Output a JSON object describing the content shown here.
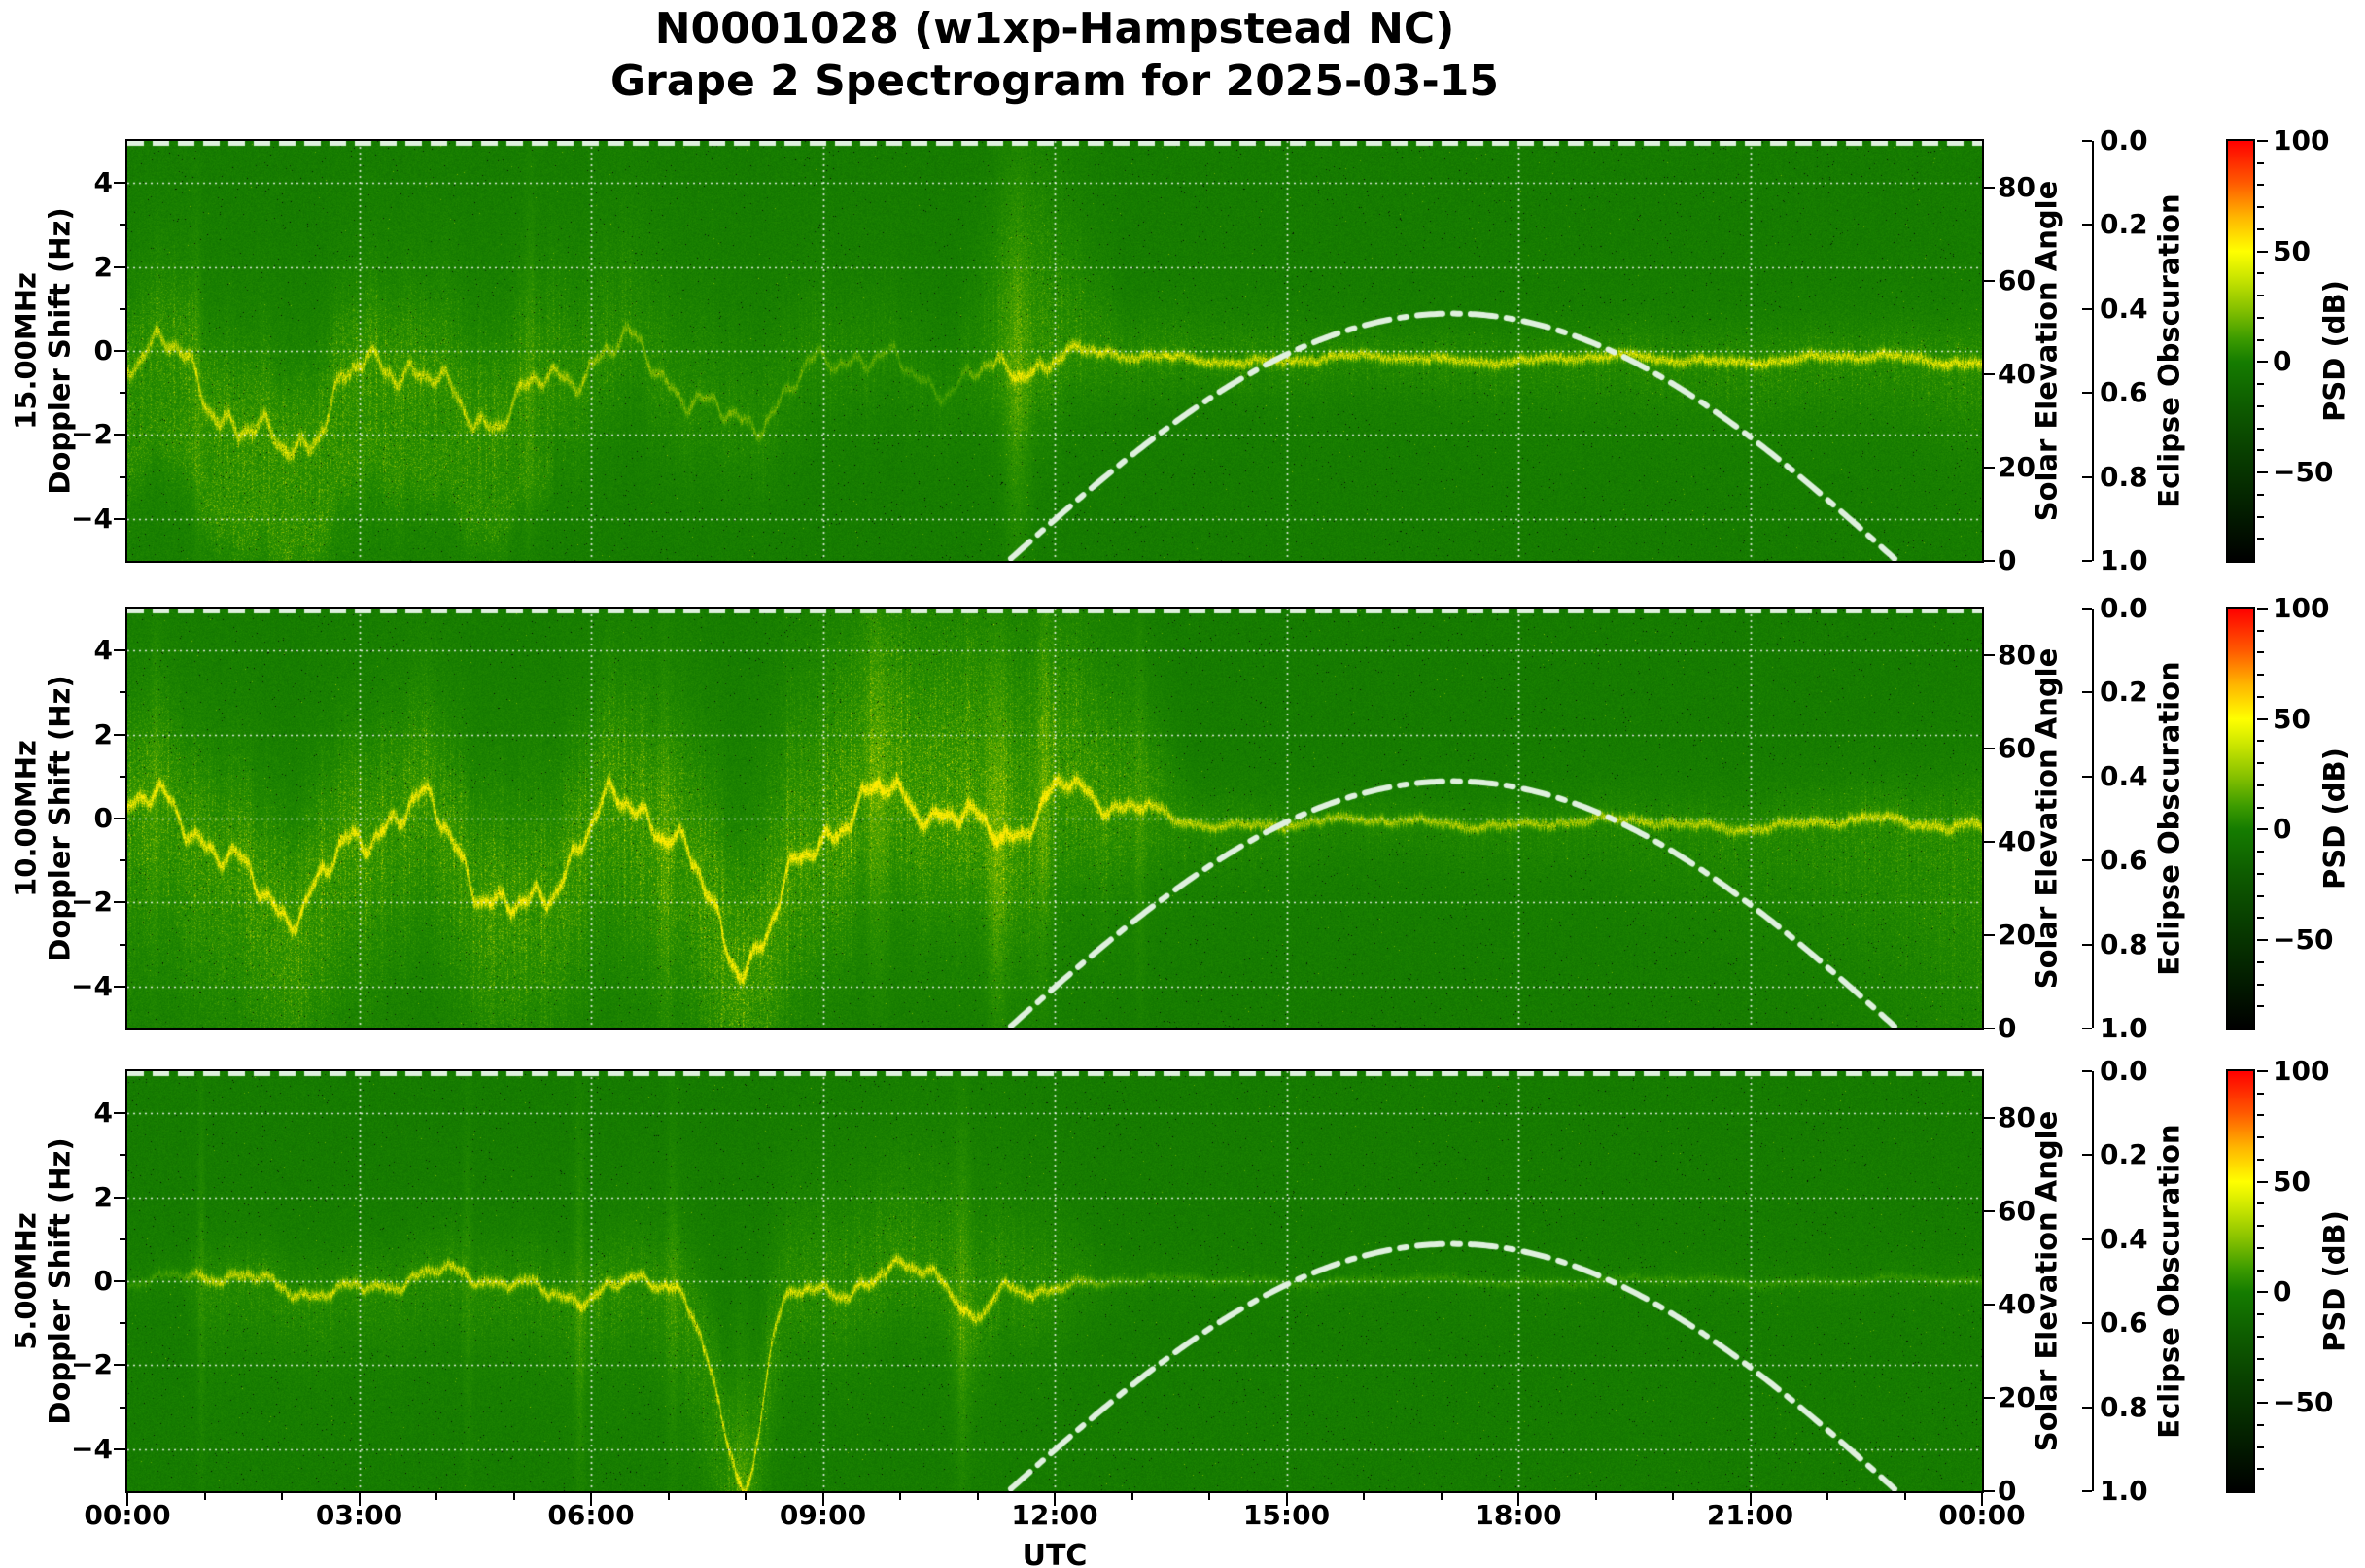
{
  "chart_data": {
    "type": "heatmap",
    "subtype": "spectrogram-multipanel",
    "title_line1": "N0001028 (w1xp-Hampstead NC)",
    "title_line2": "Grape 2 Spectrogram for 2025-03-15",
    "station": "N0001028",
    "callsign": "w1xp",
    "location": "Hampstead NC",
    "date": "2025-03-15",
    "x_axis": {
      "label": "UTC",
      "range_hours": [
        0,
        24
      ],
      "tick_hours": [
        0,
        3,
        6,
        9,
        12,
        15,
        18,
        21,
        24
      ],
      "tick_labels": [
        "00:00",
        "03:00",
        "06:00",
        "09:00",
        "12:00",
        "15:00",
        "18:00",
        "21:00",
        "00:00"
      ],
      "minor_tick_every_hours": 1
    },
    "doppler_axis": {
      "label": "Doppler Shift (Hz)",
      "range": [
        -5,
        5
      ],
      "tick_values": [
        4,
        2,
        0,
        -2,
        -4
      ],
      "tick_labels": [
        "4",
        "2",
        "0",
        "−2",
        "−4"
      ],
      "minor_tick_values": [
        3,
        1,
        -1,
        -3
      ]
    },
    "solar_axis": {
      "label": "Solar Elevation Angle",
      "range": [
        0,
        90
      ],
      "tick_values": [
        80,
        60,
        40,
        20,
        0
      ],
      "tick_labels": [
        "80",
        "60",
        "40",
        "20",
        "0"
      ]
    },
    "eclipse_axis": {
      "label": "Eclipse Obscuration",
      "top_value": 0.0,
      "bottom_value": 1.0,
      "tick_values": [
        0.0,
        0.2,
        0.4,
        0.6,
        0.8,
        1.0
      ],
      "tick_labels": [
        "0.0",
        "0.2",
        "0.4",
        "0.6",
        "0.8",
        "1.0"
      ]
    },
    "colorbar": {
      "label": "PSD (dB)",
      "top_value": 100,
      "bottom_value": -90,
      "tick_values": [
        100,
        50,
        0,
        -50
      ],
      "tick_labels": [
        "100",
        "50",
        "0",
        "−50"
      ],
      "minor_tick_step": 10,
      "gradient_stops": [
        [
          0.0,
          "#ff0000"
        ],
        [
          0.1,
          "#ff5a00"
        ],
        [
          0.18,
          "#ffb400"
        ],
        [
          0.263,
          "#ffff00"
        ],
        [
          0.32,
          "#cfe800"
        ],
        [
          0.4,
          "#86c100"
        ],
        [
          0.47,
          "#3d9c00"
        ],
        [
          0.526,
          "#157c00"
        ],
        [
          0.63,
          "#0e5c00"
        ],
        [
          0.75,
          "#083d00"
        ],
        [
          0.88,
          "#031e00"
        ],
        [
          1.0,
          "#000000"
        ]
      ]
    },
    "overlays": {
      "solar_elevation_curve": {
        "style": "dash-dot",
        "color": "#dff0de",
        "noon_utc": 17.15,
        "max_elevation_deg": 53,
        "sunrise_utc": 11.4,
        "sunset_utc": 22.9,
        "cos_offset": -3.7,
        "cos_amplitude": 56.7
      },
      "eclipse_obscuration_trace": {
        "style": "dashed",
        "color": "#dff0de",
        "constant_value": 0.0
      }
    },
    "colormap_dB_to_rgb": [
      [
        -90,
        0,
        0,
        0
      ],
      [
        -60,
        3,
        30,
        0
      ],
      [
        -30,
        9,
        64,
        0
      ],
      [
        -10,
        16,
        100,
        0
      ],
      [
        0,
        21,
        124,
        0
      ],
      [
        10,
        40,
        142,
        0
      ],
      [
        20,
        80,
        163,
        0
      ],
      [
        30,
        130,
        185,
        0
      ],
      [
        40,
        180,
        205,
        0
      ],
      [
        48,
        222,
        228,
        0
      ],
      [
        55,
        255,
        246,
        0
      ],
      [
        70,
        255,
        180,
        0
      ],
      [
        85,
        255,
        90,
        0
      ],
      [
        100,
        255,
        0,
        0
      ]
    ],
    "panels": [
      {
        "frequency_label": "15.00MHz",
        "frequency_mhz": 15.0,
        "description": "Diffuse wandering Doppler trace near -0.5 Hz from 00:00-12:30 UTC, burst to +3 Hz near 11:30, then tight bright carrier line just below 0 Hz from ~12:30 to 24:00",
        "render_model": {
          "seed": 101,
          "keys": [
            [
              0.0,
              22,
              1.1,
              1.7,
              1.0,
              34,
              -0.35
            ],
            [
              1.5,
              26,
              1.3,
              2.1,
              1.2,
              38,
              -0.35
            ],
            [
              3.0,
              25,
              1.2,
              2.2,
              1.1,
              36,
              -0.35
            ],
            [
              5.0,
              22,
              1.5,
              1.6,
              1.0,
              34,
              -0.35
            ],
            [
              6.5,
              15,
              1.6,
              1.2,
              1.0,
              26,
              -0.3
            ],
            [
              8.0,
              13,
              1.4,
              1.0,
              0.9,
              22,
              -0.3
            ],
            [
              9.5,
              11,
              1.1,
              0.9,
              0.9,
              18,
              -0.25
            ],
            [
              10.7,
              8,
              0.9,
              0.8,
              0.8,
              14,
              -0.2
            ],
            [
              11.3,
              18,
              2.2,
              0.9,
              0.8,
              34,
              -0.1
            ],
            [
              11.8,
              24,
              2.7,
              0.9,
              0.7,
              40,
              0.0
            ],
            [
              12.3,
              19,
              1.6,
              0.8,
              0.4,
              42,
              -0.15
            ],
            [
              12.9,
              15,
              0.6,
              0.7,
              0.18,
              42,
              -0.2
            ],
            [
              14.0,
              15,
              0.7,
              0.5,
              0.15,
              42,
              -0.2
            ],
            [
              16.0,
              13,
              0.45,
              0.6,
              0.12,
              42,
              -0.2
            ],
            [
              18.0,
              14,
              0.45,
              0.7,
              0.12,
              44,
              -0.2
            ],
            [
              20.0,
              15,
              0.5,
              0.8,
              0.13,
              44,
              -0.2
            ],
            [
              22.5,
              16,
              0.5,
              0.9,
              0.15,
              44,
              -0.2
            ],
            [
              24.0,
              19,
              0.6,
              1.1,
              0.2,
              44,
              -0.2
            ]
          ],
          "dips": [
            {
              "t": 1.9,
              "w": 0.8,
              "d": -1.3
            },
            {
              "t": 4.3,
              "w": 0.5,
              "d": -1.0
            },
            {
              "t": 7.6,
              "w": 0.6,
              "d": -1.1
            },
            {
              "t": 10.2,
              "w": 0.4,
              "d": -0.8
            }
          ],
          "streaks": [
            {
              "t": 11.5,
              "w": 0.12,
              "a": 14
            },
            {
              "t": 5.2,
              "w": 0.05,
              "a": 8
            },
            {
              "t": 0.9,
              "w": 0.04,
              "a": 7
            }
          ],
          "subband": {
            "off": -2.3,
            "amp": 9,
            "sigma": 0.5,
            "t0": 0,
            "t1": 5.5
          }
        }
      },
      {
        "frequency_label": "10.00MHz",
        "frequency_mhz": 10.0,
        "description": "Strong broad Doppler activity 00:00-13:30 UTC with jagged bright line near 0 Hz, upward plumes to +4 Hz near 09:30-12:00, quiet thin carrier afterwards, spread returning 21:00-24:00",
        "render_model": {
          "seed": 202,
          "keys": [
            [
              0.0,
              26,
              1.4,
              2.2,
              1.0,
              44,
              -0.2
            ],
            [
              2.0,
              28,
              1.5,
              2.4,
              1.1,
              46,
              -0.25
            ],
            [
              4.0,
              27,
              1.6,
              2.0,
              1.2,
              46,
              -0.3
            ],
            [
              6.0,
              28,
              1.7,
              2.1,
              1.1,
              46,
              -0.2
            ],
            [
              7.8,
              30,
              1.9,
              2.5,
              1.2,
              48,
              -0.3
            ],
            [
              9.3,
              30,
              2.6,
              1.8,
              1.0,
              48,
              -0.1
            ],
            [
              10.5,
              32,
              2.9,
              1.5,
              0.9,
              50,
              0.1
            ],
            [
              11.8,
              30,
              2.7,
              1.8,
              0.8,
              48,
              0.15
            ],
            [
              13.0,
              24,
              1.8,
              1.2,
              0.5,
              44,
              0.0
            ],
            [
              13.8,
              13,
              0.5,
              0.8,
              0.2,
              38,
              -0.1
            ],
            [
              16.0,
              10,
              0.35,
              0.6,
              0.15,
              36,
              -0.1
            ],
            [
              19.0,
              11,
              0.4,
              0.8,
              0.15,
              38,
              -0.1
            ],
            [
              21.5,
              14,
              0.5,
              1.4,
              0.18,
              40,
              -0.15
            ],
            [
              23.2,
              17,
              0.6,
              2.6,
              0.22,
              42,
              -0.1
            ],
            [
              24.0,
              18,
              0.7,
              3.4,
              0.25,
              42,
              -0.1
            ]
          ],
          "dips": [
            {
              "t": 2.1,
              "w": 0.7,
              "d": -1.2
            },
            {
              "t": 5.0,
              "w": 0.45,
              "d": -1.5
            },
            {
              "t": 7.9,
              "w": 0.5,
              "d": -2.4
            },
            {
              "t": 12.1,
              "w": 0.3,
              "d": 0.6
            }
          ],
          "streaks": [
            {
              "t": 9.7,
              "w": 0.1,
              "a": 13
            },
            {
              "t": 11.25,
              "w": 0.09,
              "a": 15
            },
            {
              "t": 11.85,
              "w": 0.07,
              "a": 11
            },
            {
              "t": 6.95,
              "w": 0.05,
              "a": 9
            },
            {
              "t": 0.35,
              "w": 0.04,
              "a": 8
            },
            {
              "t": 13.1,
              "w": 0.05,
              "a": 8
            }
          ],
          "subband": null
        }
      },
      {
        "frequency_label": "5.00MHz",
        "frequency_mhz": 5.0,
        "description": "Tight bright carrier near 0 Hz 01:00-12:30 UTC with deep V excursion to -4 Hz near 07:45 and vertical bursts, nearly uniform quiet background 12:30-24:00",
        "render_model": {
          "seed": 303,
          "keys": [
            [
              0.0,
              5,
              0.3,
              0.35,
              0.2,
              10,
              0.0
            ],
            [
              0.7,
              6,
              0.3,
              0.4,
              0.25,
              16,
              0.0
            ],
            [
              1.0,
              16,
              0.5,
              1.0,
              0.4,
              40,
              -0.05
            ],
            [
              3.0,
              15,
              0.5,
              1.0,
              0.4,
              40,
              -0.05
            ],
            [
              5.0,
              15,
              0.6,
              1.0,
              0.45,
              42,
              -0.05
            ],
            [
              6.8,
              17,
              0.8,
              1.2,
              0.5,
              44,
              -0.1
            ],
            [
              7.8,
              20,
              1.0,
              2.2,
              0.6,
              46,
              -0.2
            ],
            [
              8.6,
              17,
              1.3,
              1.0,
              0.5,
              44,
              -0.05
            ],
            [
              9.7,
              18,
              1.5,
              0.9,
              0.5,
              44,
              0.05
            ],
            [
              10.8,
              19,
              1.6,
              1.0,
              0.5,
              44,
              0.05
            ],
            [
              12.0,
              14,
              1.0,
              0.8,
              0.35,
              40,
              0.0
            ],
            [
              12.7,
              6,
              0.35,
              0.4,
              0.12,
              20,
              0.0
            ],
            [
              13.5,
              4,
              0.3,
              0.3,
              0.1,
              12,
              0.0
            ],
            [
              23.3,
              4,
              0.3,
              0.35,
              0.1,
              12,
              0.0
            ],
            [
              24.0,
              5,
              0.35,
              0.4,
              0.12,
              14,
              0.0
            ]
          ],
          "dips": [
            {
              "t": 7.8,
              "w": 0.3,
              "d": -3.6
            },
            {
              "t": 8.05,
              "w": 0.15,
              "d": -2.0
            },
            {
              "t": 10.95,
              "w": 0.2,
              "d": -1.2
            }
          ],
          "streaks": [
            {
              "t": 5.85,
              "w": 0.05,
              "a": 11
            },
            {
              "t": 7.05,
              "w": 0.05,
              "a": 8
            },
            {
              "t": 7.95,
              "w": 0.08,
              "a": 10
            },
            {
              "t": 10.8,
              "w": 0.07,
              "a": 12
            },
            {
              "t": 0.95,
              "w": 0.03,
              "a": 9
            },
            {
              "t": 4.4,
              "w": 0.04,
              "a": 7
            }
          ],
          "subband": null
        }
      }
    ]
  }
}
